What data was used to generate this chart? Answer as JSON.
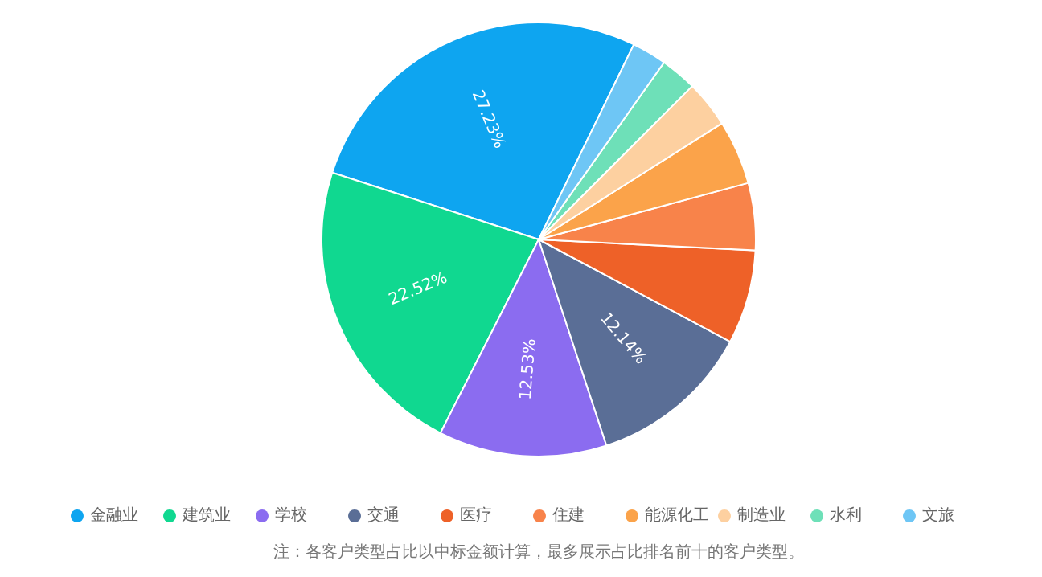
{
  "chart_data": {
    "type": "pie",
    "categories": [
      "金融业",
      "建筑业",
      "学校",
      "交通",
      "医疗",
      "住建",
      "能源化工",
      "制造业",
      "水利",
      "文旅"
    ],
    "values": [
      27.23,
      22.52,
      12.53,
      12.14,
      7.0,
      5.0,
      4.8,
      3.5,
      2.7,
      2.58
    ],
    "value_labels": [
      "27.23%",
      "22.52%",
      "12.53%",
      "12.14%",
      null,
      null,
      null,
      null,
      null,
      null
    ],
    "colors": [
      "#0ea5f0",
      "#10d890",
      "#8b6cf0",
      "#5a6e96",
      "#ee6128",
      "#f8834a",
      "#fba34a",
      "#fdd0a0",
      "#6ee0b8",
      "#6ec6f5"
    ],
    "legend": "bottom",
    "marker": "circle",
    "annotations": [
      "注：各客户类型占比以中标金额计算，最多展示占比排名前十的客户类型。"
    ]
  }
}
